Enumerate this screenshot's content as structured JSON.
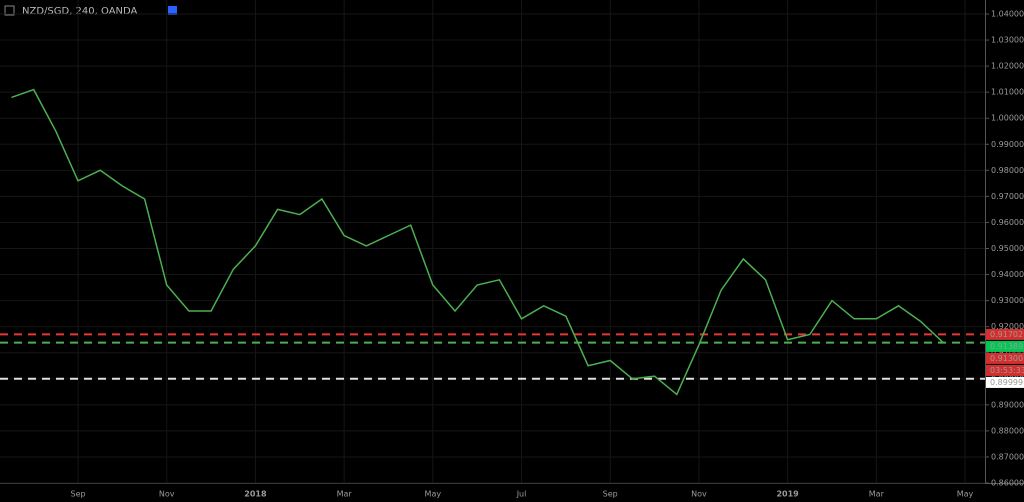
{
  "chart_data": {
    "type": "line",
    "title": "NZD/SGD, 240, OANDA",
    "categories": [
      null,
      null,
      null,
      "Sep",
      null,
      null,
      null,
      "Nov",
      null,
      null,
      null,
      "2018",
      null,
      null,
      null,
      "Mar",
      null,
      null,
      null,
      "May",
      null,
      null,
      null,
      "Jul",
      null,
      null,
      null,
      "Sep",
      null,
      null,
      null,
      "Nov",
      null,
      null,
      null,
      "2019",
      null,
      null,
      null,
      "Mar",
      null,
      null,
      null,
      "May"
    ],
    "values": [
      1.008,
      1.011,
      0.995,
      0.976,
      0.98,
      0.974,
      0.969,
      0.936,
      0.926,
      0.926,
      0.942,
      0.951,
      0.965,
      0.963,
      0.969,
      0.955,
      0.951,
      0.955,
      0.959,
      0.936,
      0.926,
      0.936,
      0.938,
      0.923,
      0.928,
      0.924,
      0.905,
      0.907,
      0.9,
      0.901,
      0.894,
      0.913,
      0.934,
      0.946,
      0.938,
      0.915,
      0.917,
      0.93,
      0.923,
      0.923,
      0.928,
      0.922,
      0.914,
      null
    ],
    "color": "#4caf50",
    "ylim": [
      0.86,
      1.04
    ],
    "yticks": [
      {
        "value": 0.86,
        "label": "0.86000"
      },
      {
        "value": 0.87,
        "label": "0.87000"
      },
      {
        "value": 0.88,
        "label": "0.88000"
      },
      {
        "value": 0.89,
        "label": "0.89000"
      },
      {
        "value": 0.9,
        "label": "0.90000"
      },
      {
        "value": 0.91,
        "label": "0.91000"
      },
      {
        "value": 0.92,
        "label": "0.92000"
      },
      {
        "value": 0.93,
        "label": "0.93000"
      },
      {
        "value": 0.94,
        "label": "0.94000"
      },
      {
        "value": 0.95,
        "label": "0.95000"
      },
      {
        "value": 0.96,
        "label": "0.96000"
      },
      {
        "value": 0.97,
        "label": "0.97000"
      },
      {
        "value": 0.98,
        "label": "0.98000"
      },
      {
        "value": 0.99,
        "label": "0.99000"
      },
      {
        "value": 1.0,
        "label": "1.00000"
      },
      {
        "value": 1.01,
        "label": "1.01000"
      },
      {
        "value": 1.02,
        "label": "1.02000"
      },
      {
        "value": 1.03,
        "label": "1.03000"
      },
      {
        "value": 1.04,
        "label": "1.04000"
      }
    ],
    "grid": true,
    "hlines": [
      {
        "value": 0.91702,
        "color": "#e53935"
      },
      {
        "value": 0.91389,
        "color": "#4caf50"
      },
      {
        "value": 0.89999,
        "color": "#e0e0e0"
      }
    ],
    "price_tags": [
      {
        "value": 0.91702,
        "color": "#d32f2f"
      },
      {
        "value": 0.91389,
        "color": "#00c853"
      },
      {
        "value": 0.913,
        "label": "0.91300",
        "color": "#d32f2f"
      },
      {
        "value": 0.89999,
        "color": "#ffffff"
      }
    ],
    "countdown": "03:53:33"
  }
}
